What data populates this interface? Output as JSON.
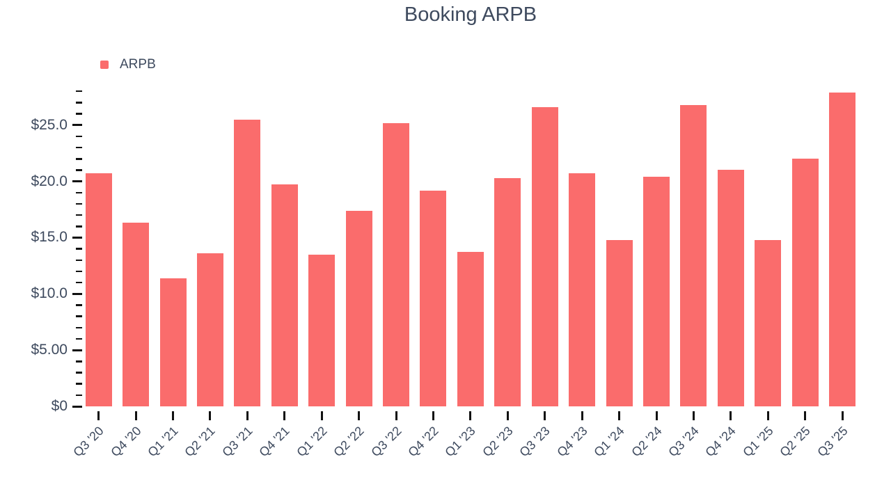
{
  "title": "Booking ARPB",
  "legend": {
    "label": "ARPB"
  },
  "chart_data": {
    "type": "bar",
    "title": "Booking ARPB",
    "xlabel": "",
    "ylabel": "",
    "categories": [
      "Q3 '20",
      "Q4 '20",
      "Q1 '21",
      "Q2 '21",
      "Q3 '21",
      "Q4 '21",
      "Q1 '22",
      "Q2 '22",
      "Q3 '22",
      "Q4 '22",
      "Q1 '23",
      "Q2 '23",
      "Q3 '23",
      "Q4 '23",
      "Q1 '24",
      "Q2 '24",
      "Q3 '24",
      "Q4 '24",
      "Q1 '25",
      "Q2 '25",
      "Q3 '25"
    ],
    "series": [
      {
        "name": "ARPB",
        "values": [
          20.7,
          16.3,
          11.4,
          13.6,
          25.5,
          19.7,
          13.5,
          17.4,
          25.2,
          19.2,
          13.7,
          20.3,
          26.6,
          20.7,
          14.8,
          20.4,
          26.8,
          21.0,
          14.8,
          22.0,
          27.9
        ]
      }
    ],
    "ylim": [
      0,
      28
    ],
    "y_major_ticks": [
      {
        "value": 0,
        "label": "$0"
      },
      {
        "value": 5,
        "label": "$5.00"
      },
      {
        "value": 10,
        "label": "$10.0"
      },
      {
        "value": 15,
        "label": "$15.0"
      },
      {
        "value": 20,
        "label": "$20.0"
      },
      {
        "value": 25,
        "label": "$25.0"
      }
    ],
    "y_minor_tick_interval": 1,
    "grid": false,
    "legend_position": "top-left",
    "colors": {
      "bar": "#FA6C6C",
      "text": "#3E4A5E",
      "tick": "#111111",
      "background": "#FFFFFF"
    }
  }
}
